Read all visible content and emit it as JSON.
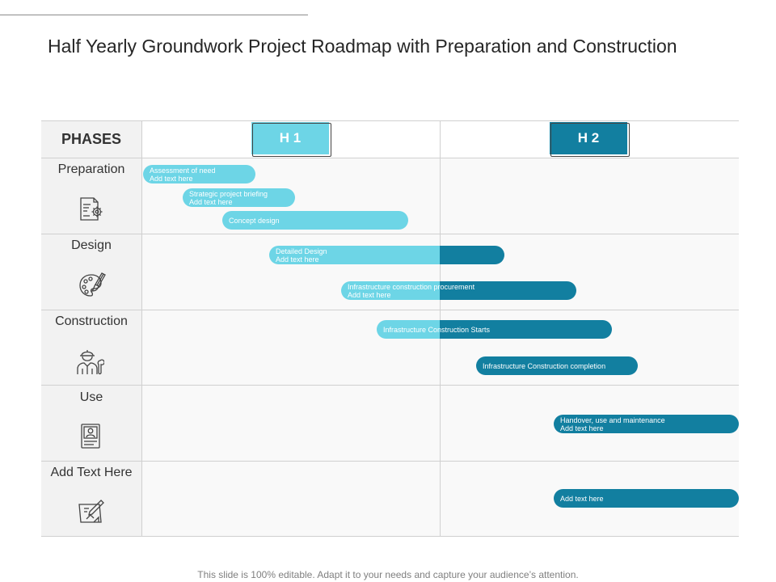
{
  "title": "Half Yearly Groundwork Project Roadmap with Preparation and Construction",
  "colors": {
    "light": "#6dd5e6",
    "dark": "#127fa0"
  },
  "headers": {
    "phases": "PHASES",
    "h1": "H 1",
    "h2": "H 2"
  },
  "phases": [
    {
      "label": "Preparation",
      "icon": "document-gear-icon"
    },
    {
      "label": "Design",
      "icon": "paint-palette-brush-icon"
    },
    {
      "label": "Construction",
      "icon": "construction-worker-wrench-icon"
    },
    {
      "label": "Use",
      "icon": "user-document-icon"
    },
    {
      "label": "Add Text Here",
      "icon": "blueprint-pencil-icon"
    }
  ],
  "tasks": [
    {
      "lines": [
        "Assessment of need",
        "Add text here"
      ]
    },
    {
      "lines": [
        "Strategic project briefing",
        "Add text here"
      ]
    },
    {
      "lines": [
        "Concept design"
      ]
    },
    {
      "lines": [
        "Detailed Design",
        "Add text here"
      ]
    },
    {
      "lines": [
        "Infrastructure construction procurement",
        "Add text here"
      ]
    },
    {
      "lines": [
        "Infrastructure Construction Starts"
      ]
    },
    {
      "lines": [
        "Infrastructure Construction completion"
      ]
    },
    {
      "lines": [
        "Handover, use and maintenance",
        "Add text here"
      ]
    },
    {
      "lines": [
        "Add text here"
      ]
    }
  ],
  "footer": "This slide is 100% editable. Adapt it to your needs and capture your audience’s attention."
}
